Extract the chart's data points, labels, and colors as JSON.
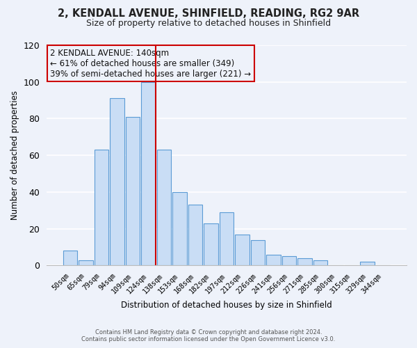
{
  "title": "2, KENDALL AVENUE, SHINFIELD, READING, RG2 9AR",
  "subtitle": "Size of property relative to detached houses in Shinfield",
  "xlabel": "Distribution of detached houses by size in Shinfield",
  "ylabel": "Number of detached properties",
  "bar_labels": [
    "50sqm",
    "65sqm",
    "79sqm",
    "94sqm",
    "109sqm",
    "124sqm",
    "138sqm",
    "153sqm",
    "168sqm",
    "182sqm",
    "197sqm",
    "212sqm",
    "226sqm",
    "241sqm",
    "256sqm",
    "271sqm",
    "285sqm",
    "300sqm",
    "315sqm",
    "329sqm",
    "344sqm"
  ],
  "bar_values": [
    8,
    3,
    63,
    91,
    81,
    100,
    63,
    40,
    33,
    23,
    29,
    17,
    14,
    6,
    5,
    4,
    3,
    0,
    0,
    2,
    0
  ],
  "highlight_bar_index": 5,
  "bar_color": "#c9ddf5",
  "highlight_bar_color": "#c9ddf5",
  "bar_edge_color": "#5b9bd5",
  "highlight_line_color": "#cc0000",
  "ylim": [
    0,
    120
  ],
  "yticks": [
    0,
    20,
    40,
    60,
    80,
    100,
    120
  ],
  "annotation_title": "2 KENDALL AVENUE: 140sqm",
  "annotation_line1": "← 61% of detached houses are smaller (349)",
  "annotation_line2": "39% of semi-detached houses are larger (221) →",
  "footer_line1": "Contains HM Land Registry data © Crown copyright and database right 2024.",
  "footer_line2": "Contains public sector information licensed under the Open Government Licence v3.0.",
  "background_color": "#eef2fa"
}
